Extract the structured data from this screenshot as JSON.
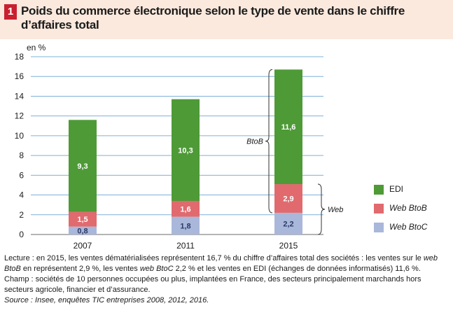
{
  "figure": {
    "number": "1",
    "title": "Poids du commerce électronique selon le type de vente dans le chiffre d’affaires total"
  },
  "chart_data": {
    "type": "bar",
    "stacked": true,
    "ylabel": "en %",
    "ylim": [
      0,
      18
    ],
    "yticks": [
      0,
      2,
      4,
      6,
      8,
      10,
      12,
      14,
      16,
      18
    ],
    "grid": true,
    "legend_position": "right",
    "categories": [
      "2007",
      "2011",
      "2015"
    ],
    "series": [
      {
        "name": "Web BtoC",
        "color": "#a9b7db",
        "values": [
          0.8,
          1.8,
          2.2
        ],
        "labels": [
          "0,8",
          "1,8",
          "2,2"
        ]
      },
      {
        "name": "Web BtoB",
        "color": "#e06a6e",
        "values": [
          1.5,
          1.6,
          2.9
        ],
        "labels": [
          "1,5",
          "1,6",
          "2,9"
        ]
      },
      {
        "name": "EDI",
        "color": "#4e9a37",
        "values": [
          9.3,
          10.3,
          11.6
        ],
        "labels": [
          "9,3",
          "10,3",
          "11,6"
        ]
      }
    ],
    "annotations": {
      "btob_brace": "BtoB",
      "web_brace": "Web"
    }
  },
  "notes": {
    "lecture_1": "Lecture : en 2015, les ventes dématérialisées représentent 16,7 % du chiffre d’affaires total des sociétés : les ventes sur le ",
    "lecture_web": "web",
    "lecture_btob": "BtoB",
    "lecture_2": " en représentent 2,9 %, les ventes ",
    "lecture_webbtoc": "web BtoC",
    "lecture_3": " 2,2 % et les ventes en EDI (échanges de données informatisés) 11,6 %.",
    "champ": "Champ : sociétés de 10 personnes occupées ou plus, implantées en France, des secteurs principalement marchands hors secteurs agricole, financier et d’assurance.",
    "source": "Source : Insee, enquêtes TIC entreprises 2008, 2012, 2016."
  }
}
